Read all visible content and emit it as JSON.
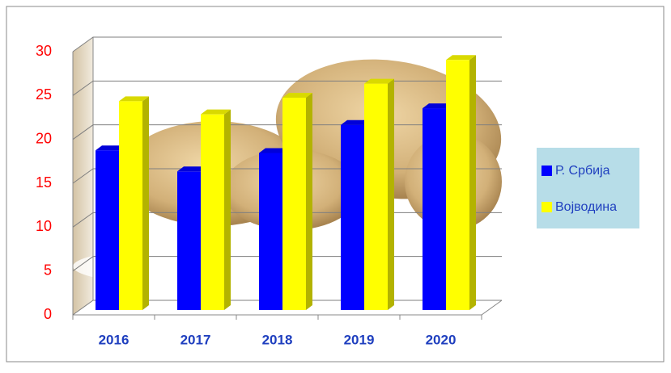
{
  "chart_data": {
    "type": "bar3d",
    "categories": [
      "2016",
      "2017",
      "2018",
      "2019",
      "2020"
    ],
    "series": [
      {
        "name": "Р. Србија",
        "color": "#0000ff",
        "values": [
          18.2,
          15.8,
          17.9,
          21.1,
          23.0
        ]
      },
      {
        "name": "Војводина",
        "color": "#ffff00",
        "values": [
          23.8,
          22.3,
          24.2,
          25.8,
          28.5
        ]
      }
    ],
    "ylim": [
      0,
      30
    ],
    "yticks": [
      0,
      5,
      10,
      15,
      20,
      25,
      30
    ],
    "grid": true,
    "legend": "right"
  }
}
